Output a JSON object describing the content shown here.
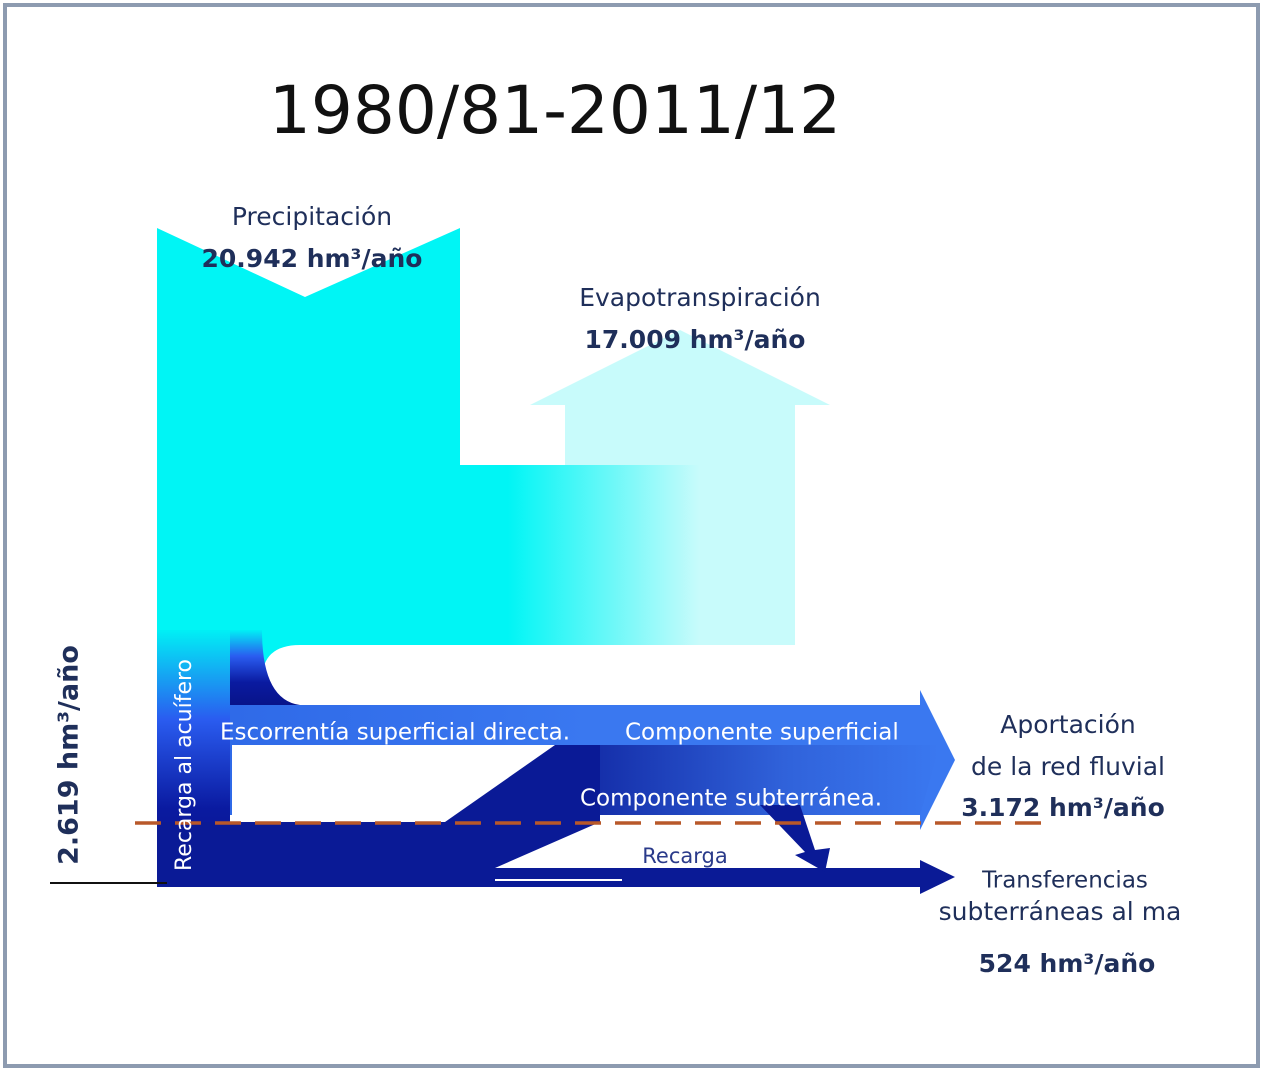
{
  "title": "1980/81-2011/12",
  "precipitation": {
    "label": "Precipitación",
    "value": "20.942  hm³/año"
  },
  "evapotranspiration": {
    "label": "Evapotranspiración",
    "value": "17.009 hm³/año"
  },
  "river_contribution": {
    "label_line1": "Aportación",
    "label_line2": "de la red fluvial",
    "value": "3.172  hm³/año"
  },
  "sea_transfer": {
    "label_line1": "Transferencias",
    "label_line2": "subterráneas al ma",
    "value": "524  hm³/año"
  },
  "aquifer_recharge": {
    "label": "Recarga al acuífero",
    "value": "2.619  hm³/año"
  },
  "flow_labels": {
    "direct_runoff": "Escorrentía superficial directa.",
    "surface_component": "Componente superficial",
    "groundwater_component": "Componente subterránea.",
    "recharge": "Recarga"
  }
}
